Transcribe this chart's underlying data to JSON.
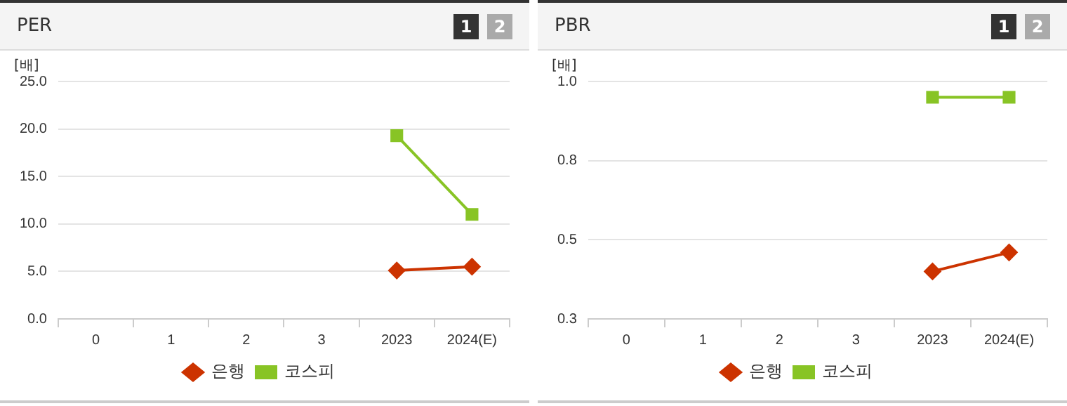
{
  "chart_data": [
    {
      "type": "line",
      "title": "PER",
      "ylabel": "[배]",
      "annotations": [
        "1",
        "2"
      ],
      "categories": [
        "0",
        "1",
        "2",
        "3",
        "2023",
        "2024(E)"
      ],
      "ylim": [
        0,
        25
      ],
      "yticks": [
        {
          "value": 0,
          "label": "0.0"
        },
        {
          "value": 5,
          "label": "5.0"
        },
        {
          "value": 10,
          "label": "10.0"
        },
        {
          "value": 15,
          "label": "15.0"
        },
        {
          "value": 20,
          "label": "20.0"
        },
        {
          "value": 25,
          "label": "25.0"
        }
      ],
      "grid": "y",
      "legend": "bottom",
      "series": [
        {
          "name": "은행",
          "color": "#cc3300",
          "marker": "diamond",
          "values": [
            null,
            null,
            null,
            null,
            5.1,
            5.5
          ]
        },
        {
          "name": "코스피",
          "color": "#88c425",
          "marker": "square",
          "values": [
            null,
            null,
            null,
            null,
            19.3,
            11.0
          ]
        }
      ]
    },
    {
      "type": "line",
      "title": "PBR",
      "ylabel": "[배]",
      "annotations": [
        "1",
        "2"
      ],
      "categories": [
        "0",
        "1",
        "2",
        "3",
        "2023",
        "2024(E)"
      ],
      "ylim": [
        0.25,
        1.0
      ],
      "yticks": [
        {
          "value": 0.25,
          "label": "0.3"
        },
        {
          "value": 0.5,
          "label": "0.5"
        },
        {
          "value": 0.75,
          "label": "0.8"
        },
        {
          "value": 1.0,
          "label": "1.0"
        }
      ],
      "grid": "y",
      "legend": "bottom",
      "series": [
        {
          "name": "은행",
          "color": "#cc3300",
          "marker": "diamond",
          "values": [
            null,
            null,
            null,
            null,
            0.4,
            0.46
          ]
        },
        {
          "name": "코스피",
          "color": "#88c425",
          "marker": "square",
          "values": [
            null,
            null,
            null,
            null,
            0.95,
            0.95
          ]
        }
      ]
    }
  ]
}
